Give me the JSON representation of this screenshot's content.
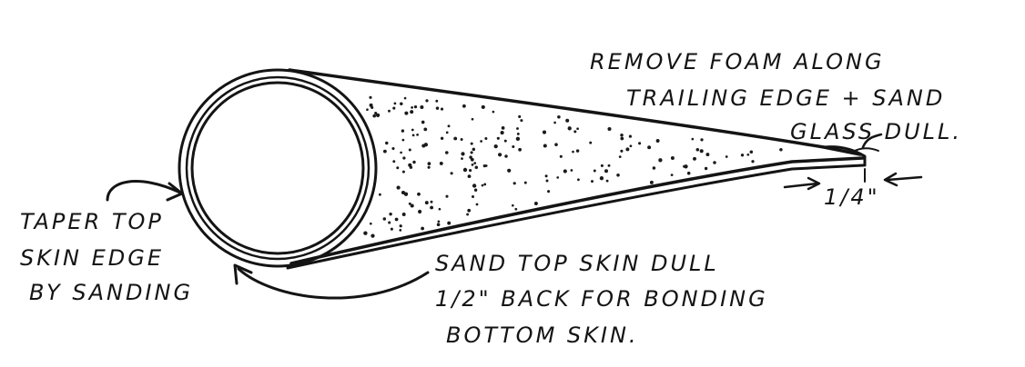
{
  "labels": {
    "remove_foam": [
      "REMOVE FOAM ALONG",
      "TRAILING EDGE + SAND",
      "GLASS DULL."
    ],
    "dimension": "1/4\"",
    "taper": [
      "TAPER TOP",
      "SKIN EDGE",
      "BY SANDING"
    ],
    "sand_top": [
      "SAND TOP SKIN DULL",
      "1/2\" BACK FOR BONDING",
      "BOTTOM SKIN."
    ]
  },
  "colors": {
    "ink": "#141414",
    "paper": "#ffffff"
  }
}
